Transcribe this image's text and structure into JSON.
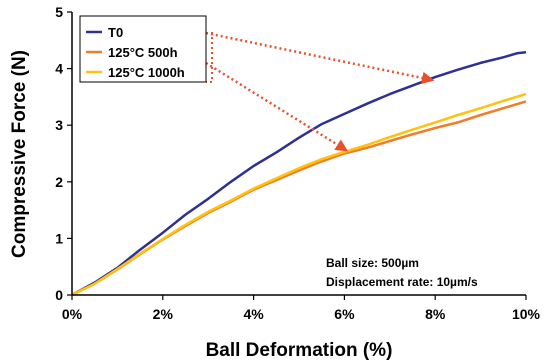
{
  "chart_data": {
    "type": "line",
    "xlabel": "Ball Deformation (%)",
    "ylabel": "Compressive Force (N)",
    "xlim": [
      0,
      10
    ],
    "ylim": [
      0,
      5
    ],
    "x_ticks": [
      "0%",
      "2%",
      "4%",
      "6%",
      "8%",
      "10%"
    ],
    "y_ticks": [
      "0",
      "1",
      "2",
      "3",
      "4",
      "5"
    ],
    "grid": false,
    "legend_position": "top-left",
    "series": [
      {
        "name": "T0",
        "color": "#2E3192",
        "x": [
          0,
          0.5,
          1,
          1.5,
          2,
          2.5,
          3,
          3.5,
          4,
          4.5,
          5,
          5.5,
          6,
          6.5,
          7,
          7.5,
          8,
          8.5,
          9,
          9.5,
          9.8,
          10
        ],
        "y": [
          0,
          0.22,
          0.48,
          0.8,
          1.1,
          1.42,
          1.7,
          2.0,
          2.28,
          2.52,
          2.78,
          3.02,
          3.2,
          3.38,
          3.55,
          3.7,
          3.85,
          3.98,
          4.1,
          4.2,
          4.27,
          4.29
        ]
      },
      {
        "name": "125°C 500h",
        "color": "#F07D2A",
        "x": [
          0,
          0.5,
          1,
          1.5,
          2,
          2.5,
          3,
          3.5,
          4,
          4.5,
          5,
          5.5,
          6,
          6.5,
          7,
          7.5,
          8,
          8.5,
          9,
          9.5,
          10
        ],
        "y": [
          0,
          0.2,
          0.45,
          0.72,
          0.98,
          1.22,
          1.45,
          1.65,
          1.86,
          2.03,
          2.2,
          2.36,
          2.5,
          2.6,
          2.72,
          2.84,
          2.95,
          3.05,
          3.18,
          3.3,
          3.42
        ]
      },
      {
        "name": "125°C 1000h",
        "color": "#FFC20E",
        "x": [
          0,
          0.5,
          1,
          1.5,
          2,
          2.5,
          3,
          3.5,
          4,
          4.5,
          5,
          5.5,
          6,
          6.5,
          7,
          7.5,
          8,
          8.5,
          9,
          9.5,
          10
        ],
        "y": [
          0,
          0.2,
          0.46,
          0.73,
          0.99,
          1.24,
          1.47,
          1.67,
          1.88,
          2.06,
          2.24,
          2.4,
          2.53,
          2.65,
          2.79,
          2.92,
          3.05,
          3.18,
          3.3,
          3.43,
          3.55
        ]
      }
    ],
    "annotations": [
      "Ball size: 500µm",
      "Displacement rate: 10µm/s"
    ],
    "arrow_color": "#E8502A",
    "arrows": [
      {
        "from": [
          5.1,
          3.82
        ],
        "to": [
          5.05,
          3.85
        ]
      },
      {
        "from": [
          5.1,
          3.82
        ],
        "to": [
          6.05,
          2.55
        ]
      }
    ]
  }
}
